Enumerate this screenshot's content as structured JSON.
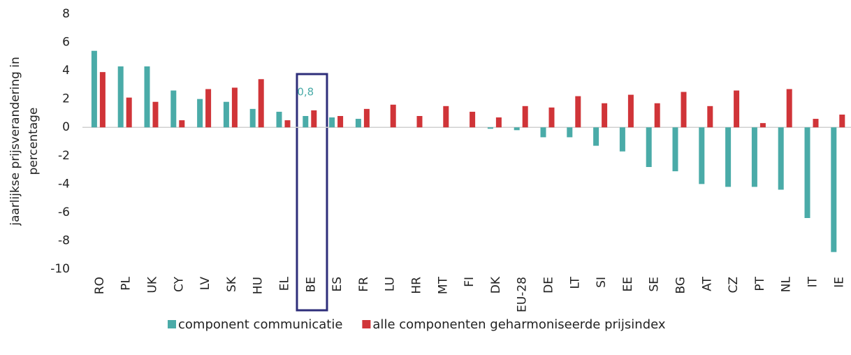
{
  "chart_data": {
    "type": "bar",
    "ylabel": [
      "jaarlijkse prijsverandering in",
      "percentage"
    ],
    "categories": [
      "RO",
      "PL",
      "UK",
      "CY",
      "LV",
      "SK",
      "HU",
      "EL",
      "BE",
      "ES",
      "FR",
      "LU",
      "HR",
      "MT",
      "FI",
      "DK",
      "EU-28",
      "DE",
      "LT",
      "SI",
      "EE",
      "SE",
      "BG",
      "AT",
      "CZ",
      "PT",
      "NL",
      "IT",
      "IE"
    ],
    "series": [
      {
        "name": "component communicatie",
        "color": "#4aaba8",
        "values": [
          5.4,
          4.3,
          4.3,
          2.6,
          2.0,
          1.8,
          1.3,
          1.1,
          0.8,
          0.7,
          0.6,
          0,
          0,
          0,
          0,
          -0.1,
          -0.2,
          -0.7,
          -0.7,
          -1.3,
          -1.7,
          -2.8,
          -3.1,
          -4.0,
          -4.2,
          -4.2,
          -4.4,
          -6.4,
          -8.8
        ],
        "value_labels": [
          null,
          null,
          null,
          null,
          null,
          null,
          null,
          null,
          "0,8",
          null,
          null,
          null,
          null,
          null,
          null,
          null,
          null,
          null,
          null,
          null,
          null,
          null,
          null,
          null,
          null,
          null,
          null,
          null,
          null
        ]
      },
      {
        "name": "alle componenten geharmoniseerde prijsindex",
        "color": "#d03438",
        "values": [
          3.9,
          2.1,
          1.8,
          0.5,
          2.7,
          2.8,
          3.4,
          0.5,
          1.2,
          0.8,
          1.3,
          1.6,
          0.8,
          1.5,
          1.1,
          0.7,
          1.5,
          1.4,
          2.2,
          1.7,
          2.3,
          1.7,
          2.5,
          1.5,
          2.6,
          0.3,
          2.7,
          0.6,
          0.9
        ]
      }
    ],
    "ylim": [
      -10,
      8
    ],
    "yticks": [
      8,
      6,
      4,
      2,
      0,
      -2,
      -4,
      -6,
      -8,
      -10
    ],
    "legend": "bottom"
  }
}
